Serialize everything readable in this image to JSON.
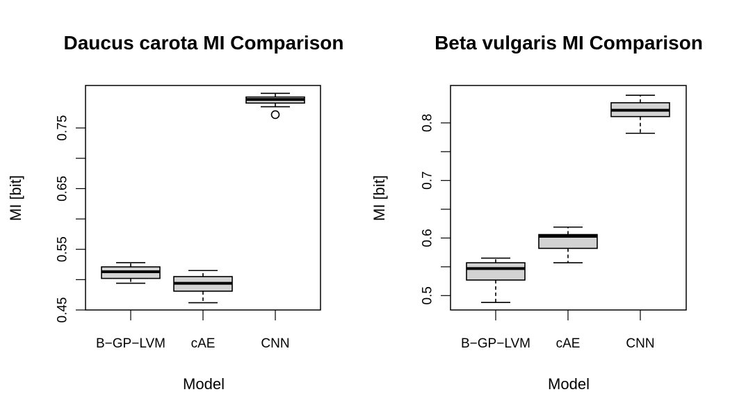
{
  "colors": {
    "box_fill": "#d3d3d3",
    "stroke": "#000000",
    "background": "#ffffff"
  },
  "chart_data": [
    {
      "type": "boxplot",
      "title": "Daucus carota MI Comparison",
      "xlabel": "Model",
      "ylabel": "MI [bit]",
      "categories": [
        "B−GP−LVM",
        "cAE",
        "CNN"
      ],
      "ylim": [
        0.45,
        0.82
      ],
      "yticks": [
        0.45,
        0.55,
        0.65,
        0.75
      ],
      "ytick_labels": [
        "0.45",
        "0.55",
        "0.65",
        "0.75"
      ],
      "grid": false,
      "boxes": [
        {
          "whisker_low": 0.494,
          "q1": 0.502,
          "median": 0.513,
          "q3": 0.521,
          "whisker_high": 0.528,
          "outliers": []
        },
        {
          "whisker_low": 0.462,
          "q1": 0.481,
          "median": 0.494,
          "q3": 0.505,
          "whisker_high": 0.515,
          "outliers": []
        },
        {
          "whisker_low": 0.785,
          "q1": 0.791,
          "median": 0.797,
          "q3": 0.801,
          "whisker_high": 0.807,
          "outliers": [
            0.772
          ]
        }
      ]
    },
    {
      "type": "boxplot",
      "title": "Beta vulgaris MI Comparison",
      "xlabel": "Model",
      "ylabel": "MI [bit]",
      "categories": [
        "B−GP−LVM",
        "cAE",
        "CNN"
      ],
      "ylim": [
        0.475,
        0.865
      ],
      "yticks": [
        0.5,
        0.6,
        0.7,
        0.8
      ],
      "ytick_labels": [
        "0.5",
        "0.6",
        "0.7",
        "0.8"
      ],
      "grid": false,
      "boxes": [
        {
          "whisker_low": 0.488,
          "q1": 0.527,
          "median": 0.547,
          "q3": 0.557,
          "whisker_high": 0.565,
          "outliers": []
        },
        {
          "whisker_low": 0.557,
          "q1": 0.582,
          "median": 0.603,
          "q3": 0.606,
          "whisker_high": 0.619,
          "outliers": []
        },
        {
          "whisker_low": 0.782,
          "q1": 0.811,
          "median": 0.822,
          "q3": 0.835,
          "whisker_high": 0.848,
          "outliers": []
        }
      ]
    }
  ]
}
